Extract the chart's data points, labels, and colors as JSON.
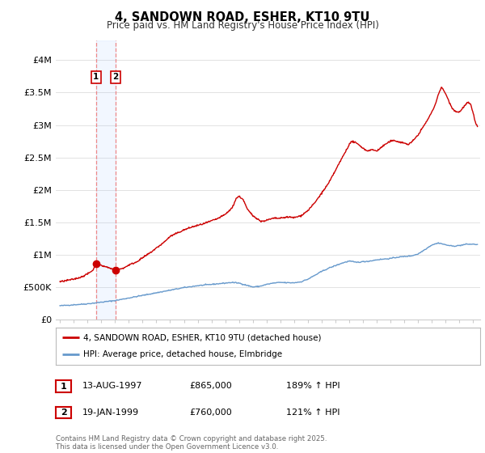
{
  "title": "4, SANDOWN ROAD, ESHER, KT10 9TU",
  "subtitle": "Price paid vs. HM Land Registry's House Price Index (HPI)",
  "red_line_color": "#cc0000",
  "blue_line_color": "#6699cc",
  "background_color": "#ffffff",
  "fig_bg_color": "#ffffff",
  "yticks": [
    0,
    500000,
    1000000,
    1500000,
    2000000,
    2500000,
    3000000,
    3500000,
    4000000
  ],
  "ytick_labels": [
    "£0",
    "£500K",
    "£1M",
    "£1.5M",
    "£2M",
    "£2.5M",
    "£3M",
    "£3.5M",
    "£4M"
  ],
  "ylim": [
    0,
    4300000
  ],
  "sale1_date": "13-AUG-1997",
  "sale1_price": 865000,
  "sale1_hpi": "189% ↑ HPI",
  "sale1_x": 1997.62,
  "sale1_y": 865000,
  "sale2_date": "19-JAN-1999",
  "sale2_price": 760000,
  "sale2_hpi": "121% ↑ HPI",
  "sale2_x": 1999.05,
  "sale2_y": 760000,
  "legend_red": "4, SANDOWN ROAD, ESHER, KT10 9TU (detached house)",
  "legend_blue": "HPI: Average price, detached house, Elmbridge",
  "footnote": "Contains HM Land Registry data © Crown copyright and database right 2025.\nThis data is licensed under the Open Government Licence v3.0.",
  "xlim_start": 1994.7,
  "xlim_end": 2025.5,
  "hpi_anchors": [
    [
      1995.0,
      210000
    ],
    [
      1996.0,
      225000
    ],
    [
      1997.0,
      240000
    ],
    [
      1998.0,
      265000
    ],
    [
      1999.0,
      290000
    ],
    [
      2000.0,
      330000
    ],
    [
      2001.0,
      370000
    ],
    [
      2002.0,
      410000
    ],
    [
      2003.0,
      450000
    ],
    [
      2004.0,
      490000
    ],
    [
      2005.0,
      520000
    ],
    [
      2006.0,
      540000
    ],
    [
      2007.0,
      560000
    ],
    [
      2007.5,
      570000
    ],
    [
      2008.0,
      560000
    ],
    [
      2008.5,
      530000
    ],
    [
      2009.0,
      500000
    ],
    [
      2009.5,
      510000
    ],
    [
      2010.0,
      540000
    ],
    [
      2010.5,
      560000
    ],
    [
      2011.0,
      570000
    ],
    [
      2011.5,
      565000
    ],
    [
      2012.0,
      565000
    ],
    [
      2012.5,
      580000
    ],
    [
      2013.0,
      620000
    ],
    [
      2013.5,
      680000
    ],
    [
      2014.0,
      740000
    ],
    [
      2014.5,
      790000
    ],
    [
      2015.0,
      830000
    ],
    [
      2015.5,
      870000
    ],
    [
      2016.0,
      900000
    ],
    [
      2016.5,
      880000
    ],
    [
      2017.0,
      890000
    ],
    [
      2017.5,
      900000
    ],
    [
      2018.0,
      920000
    ],
    [
      2018.5,
      930000
    ],
    [
      2019.0,
      940000
    ],
    [
      2019.5,
      960000
    ],
    [
      2020.0,
      970000
    ],
    [
      2020.5,
      980000
    ],
    [
      2021.0,
      1010000
    ],
    [
      2021.5,
      1080000
    ],
    [
      2022.0,
      1150000
    ],
    [
      2022.5,
      1180000
    ],
    [
      2023.0,
      1150000
    ],
    [
      2023.5,
      1130000
    ],
    [
      2024.0,
      1140000
    ],
    [
      2024.5,
      1160000
    ],
    [
      2025.0,
      1160000
    ],
    [
      2025.3,
      1155000
    ]
  ],
  "red_anchors": [
    [
      1995.0,
      580000
    ],
    [
      1995.5,
      600000
    ],
    [
      1996.0,
      620000
    ],
    [
      1996.5,
      650000
    ],
    [
      1997.0,
      700000
    ],
    [
      1997.4,
      760000
    ],
    [
      1997.62,
      865000
    ],
    [
      1997.8,
      840000
    ],
    [
      1998.2,
      820000
    ],
    [
      1998.5,
      800000
    ],
    [
      1999.05,
      760000
    ],
    [
      1999.3,
      770000
    ],
    [
      1999.7,
      800000
    ],
    [
      2000.0,
      840000
    ],
    [
      2000.5,
      880000
    ],
    [
      2001.0,
      950000
    ],
    [
      2001.5,
      1020000
    ],
    [
      2002.0,
      1100000
    ],
    [
      2002.5,
      1180000
    ],
    [
      2003.0,
      1280000
    ],
    [
      2003.5,
      1330000
    ],
    [
      2004.0,
      1380000
    ],
    [
      2004.5,
      1420000
    ],
    [
      2005.0,
      1450000
    ],
    [
      2005.5,
      1480000
    ],
    [
      2006.0,
      1520000
    ],
    [
      2006.5,
      1560000
    ],
    [
      2007.0,
      1620000
    ],
    [
      2007.5,
      1720000
    ],
    [
      2007.8,
      1870000
    ],
    [
      2008.0,
      1900000
    ],
    [
      2008.3,
      1850000
    ],
    [
      2008.6,
      1700000
    ],
    [
      2009.0,
      1600000
    ],
    [
      2009.3,
      1560000
    ],
    [
      2009.6,
      1510000
    ],
    [
      2010.0,
      1530000
    ],
    [
      2010.5,
      1560000
    ],
    [
      2011.0,
      1560000
    ],
    [
      2011.5,
      1580000
    ],
    [
      2012.0,
      1570000
    ],
    [
      2012.5,
      1600000
    ],
    [
      2013.0,
      1680000
    ],
    [
      2013.5,
      1800000
    ],
    [
      2014.0,
      1950000
    ],
    [
      2014.5,
      2100000
    ],
    [
      2015.0,
      2300000
    ],
    [
      2015.5,
      2500000
    ],
    [
      2016.0,
      2700000
    ],
    [
      2016.2,
      2750000
    ],
    [
      2016.5,
      2720000
    ],
    [
      2016.8,
      2680000
    ],
    [
      2017.0,
      2640000
    ],
    [
      2017.3,
      2600000
    ],
    [
      2017.6,
      2620000
    ],
    [
      2018.0,
      2600000
    ],
    [
      2018.3,
      2650000
    ],
    [
      2018.6,
      2700000
    ],
    [
      2019.0,
      2750000
    ],
    [
      2019.3,
      2760000
    ],
    [
      2019.6,
      2740000
    ],
    [
      2020.0,
      2720000
    ],
    [
      2020.3,
      2700000
    ],
    [
      2020.6,
      2750000
    ],
    [
      2021.0,
      2850000
    ],
    [
      2021.3,
      2950000
    ],
    [
      2021.6,
      3050000
    ],
    [
      2022.0,
      3200000
    ],
    [
      2022.3,
      3350000
    ],
    [
      2022.5,
      3500000
    ],
    [
      2022.7,
      3580000
    ],
    [
      2022.9,
      3520000
    ],
    [
      2023.0,
      3480000
    ],
    [
      2023.2,
      3380000
    ],
    [
      2023.5,
      3250000
    ],
    [
      2023.8,
      3200000
    ],
    [
      2024.0,
      3200000
    ],
    [
      2024.3,
      3280000
    ],
    [
      2024.6,
      3350000
    ],
    [
      2024.8,
      3320000
    ],
    [
      2025.0,
      3180000
    ],
    [
      2025.1,
      3080000
    ],
    [
      2025.2,
      3020000
    ],
    [
      2025.3,
      2980000
    ]
  ]
}
